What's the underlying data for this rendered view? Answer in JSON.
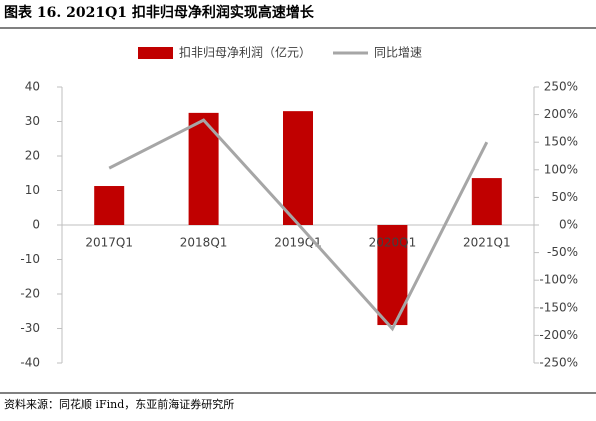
{
  "title": "图表 16. 2021Q1 扣非归母净利润实现高速增长",
  "source": "资料来源：同花顺 iFind，东亚前海证券研究所",
  "chart_data": {
    "type": "bar-line",
    "categories": [
      "2017Q1",
      "2018Q1",
      "2019Q1",
      "2020Q1",
      "2021Q1"
    ],
    "series": [
      {
        "name": "扣非归母净利润（亿元）",
        "type": "bar",
        "color": "#c00000",
        "values": [
          11.3,
          32.5,
          33.0,
          -29.0,
          13.6
        ]
      },
      {
        "name": "同比增速",
        "type": "line",
        "axis": "y2",
        "color": "#a6a6a6",
        "values": [
          103,
          190,
          2,
          -188,
          150
        ]
      }
    ],
    "ylim": [
      -40,
      40
    ],
    "yticks": [
      -40,
      -30,
      -20,
      -10,
      0,
      10,
      20,
      30,
      40
    ],
    "y2lim": [
      -250,
      250
    ],
    "y2ticks": [
      {
        "value": -250,
        "label": "-250%"
      },
      {
        "value": -200,
        "label": "-200%"
      },
      {
        "value": -150,
        "label": "-150%"
      },
      {
        "value": -100,
        "label": "-100%"
      },
      {
        "value": -50,
        "label": "-50%"
      },
      {
        "value": 0,
        "label": "0%"
      },
      {
        "value": 50,
        "label": "50%"
      },
      {
        "value": 100,
        "label": "100%"
      },
      {
        "value": 150,
        "label": "150%"
      },
      {
        "value": 200,
        "label": "200%"
      },
      {
        "value": 250,
        "label": "250%"
      }
    ],
    "legend": "top"
  }
}
